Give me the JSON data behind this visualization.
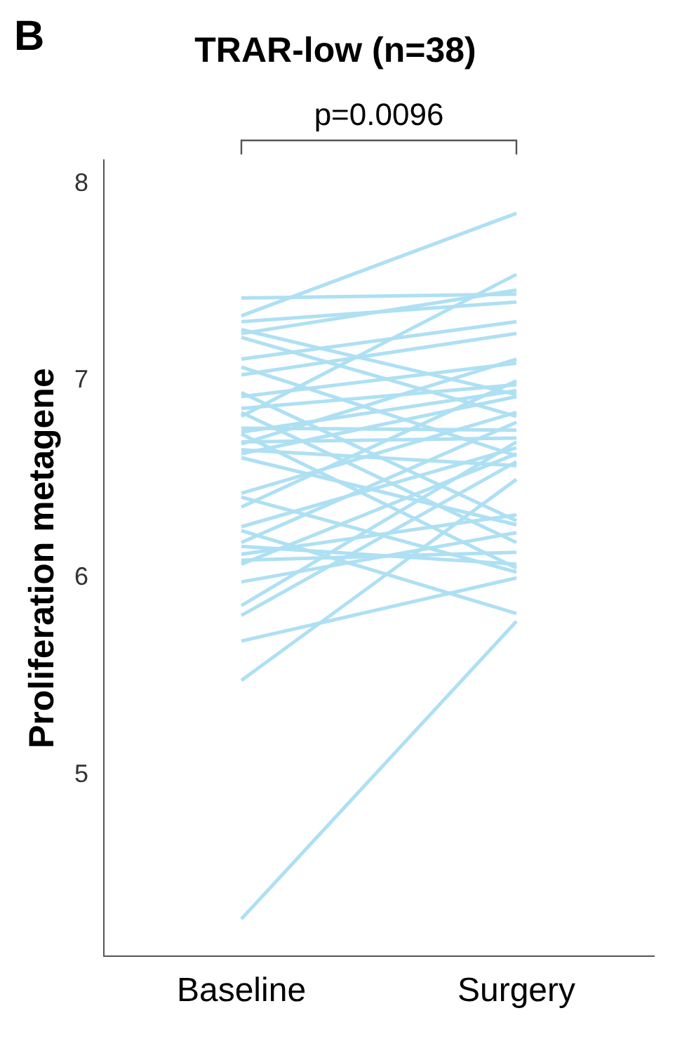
{
  "chart_data": {
    "type": "line",
    "title": "TRAR-low (n=38)",
    "ylabel": "Proliferation metagene",
    "annotations": [
      "B",
      "p=0.0096"
    ],
    "categories": [
      "Baseline",
      "Surgery"
    ],
    "ylim": [
      4.08,
      8.12
    ],
    "yticks": [
      5,
      6,
      7,
      8
    ],
    "grid": false,
    "legend": false,
    "marker": "none",
    "line_style": "solid",
    "series": [
      {
        "color": "#aee0f3",
        "values": [
          7.42,
          7.44
        ]
      },
      {
        "color": "#aee0f3",
        "values": [
          7.33,
          7.85
        ]
      },
      {
        "color": "#aee0f3",
        "values": [
          7.3,
          7.4
        ]
      },
      {
        "color": "#aee0f3",
        "values": [
          7.26,
          6.93
        ]
      },
      {
        "color": "#aee0f3",
        "values": [
          7.24,
          7.46
        ]
      },
      {
        "color": "#aee0f3",
        "values": [
          7.22,
          6.82
        ]
      },
      {
        "color": "#aee0f3",
        "values": [
          7.11,
          7.3
        ]
      },
      {
        "color": "#aee0f3",
        "values": [
          7.07,
          6.62
        ]
      },
      {
        "color": "#aee0f3",
        "values": [
          7.03,
          7.24
        ]
      },
      {
        "color": "#aee0f3",
        "values": [
          6.94,
          6.29
        ]
      },
      {
        "color": "#aee0f3",
        "values": [
          6.92,
          7.09
        ]
      },
      {
        "color": "#aee0f3",
        "values": [
          6.86,
          6.98
        ]
      },
      {
        "color": "#aee0f3",
        "values": [
          6.84,
          6.18
        ]
      },
      {
        "color": "#aee0f3",
        "values": [
          6.82,
          7.54
        ]
      },
      {
        "color": "#aee0f3",
        "values": [
          6.76,
          6.75
        ]
      },
      {
        "color": "#aee0f3",
        "values": [
          6.74,
          6.95
        ]
      },
      {
        "color": "#aee0f3",
        "values": [
          6.73,
          6.05
        ]
      },
      {
        "color": "#aee0f3",
        "values": [
          6.69,
          6.71
        ]
      },
      {
        "color": "#aee0f3",
        "values": [
          6.68,
          7.11
        ]
      },
      {
        "color": "#aee0f3",
        "values": [
          6.65,
          6.57
        ]
      },
      {
        "color": "#aee0f3",
        "values": [
          6.63,
          6.92
        ]
      },
      {
        "color": "#aee0f3",
        "values": [
          6.61,
          6.27
        ]
      },
      {
        "color": "#aee0f3",
        "values": [
          6.43,
          6.84
        ]
      },
      {
        "color": "#aee0f3",
        "values": [
          6.41,
          6.03
        ]
      },
      {
        "color": "#aee0f3",
        "values": [
          6.36,
          7.0
        ]
      },
      {
        "color": "#aee0f3",
        "values": [
          6.26,
          6.66
        ]
      },
      {
        "color": "#aee0f3",
        "values": [
          6.24,
          5.82
        ]
      },
      {
        "color": "#aee0f3",
        "values": [
          6.18,
          6.79
        ]
      },
      {
        "color": "#aee0f3",
        "values": [
          6.16,
          6.07
        ]
      },
      {
        "color": "#aee0f3",
        "values": [
          6.12,
          6.32
        ]
      },
      {
        "color": "#aee0f3",
        "values": [
          6.09,
          6.13
        ]
      },
      {
        "color": "#aee0f3",
        "values": [
          6.07,
          6.63
        ]
      },
      {
        "color": "#aee0f3",
        "values": [
          5.98,
          6.23
        ]
      },
      {
        "color": "#aee0f3",
        "values": [
          5.86,
          6.69
        ]
      },
      {
        "color": "#aee0f3",
        "values": [
          5.81,
          6.59
        ]
      },
      {
        "color": "#aee0f3",
        "values": [
          5.68,
          6.0
        ]
      },
      {
        "color": "#aee0f3",
        "values": [
          5.48,
          6.5
        ]
      },
      {
        "color": "#aee0f3",
        "values": [
          4.27,
          5.78
        ]
      }
    ]
  }
}
